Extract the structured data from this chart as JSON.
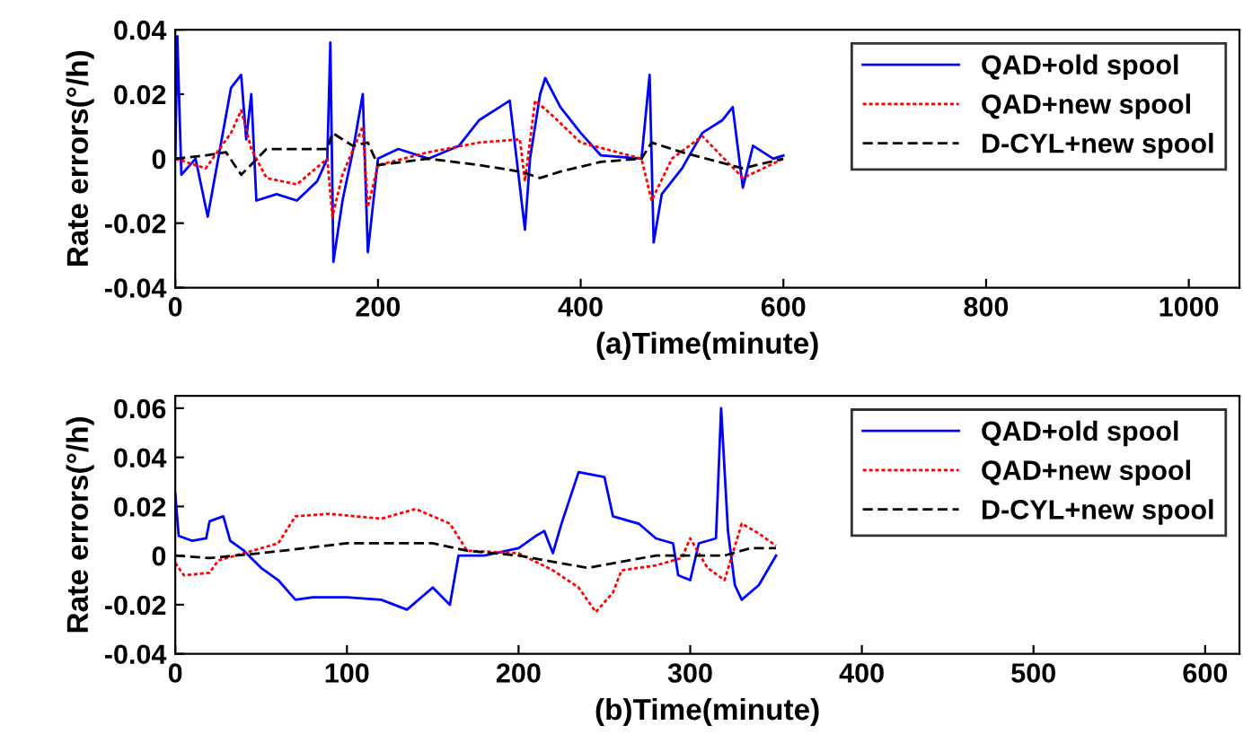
{
  "chart_data": [
    {
      "type": "line",
      "xlabel": "(a)Time(minute)",
      "ylabel": "Rate errors(°/h)",
      "xlim": [
        0,
        1050
      ],
      "xticks": [
        0,
        200,
        400,
        600,
        800,
        1000
      ],
      "ylim": [
        -0.04,
        0.04
      ],
      "yticks": [
        -0.04,
        -0.02,
        0,
        0.02,
        0.04
      ],
      "legend": "top right",
      "grid": false,
      "marker": "none",
      "series": [
        {
          "name": "QAD+old spool",
          "color": "#0000ff",
          "line_style": "solid",
          "x": [
            0,
            2,
            6,
            20,
            32,
            55,
            65,
            70,
            75,
            80,
            100,
            120,
            140,
            150,
            153,
            156,
            165,
            175,
            185,
            190,
            200,
            220,
            250,
            280,
            300,
            320,
            330,
            345,
            350,
            360,
            365,
            380,
            400,
            420,
            460,
            468,
            472,
            480,
            500,
            520,
            540,
            550,
            560,
            570,
            590,
            600
          ],
          "values": [
            0,
            0.038,
            -0.005,
            0,
            -0.018,
            0.022,
            0.026,
            0.006,
            0.02,
            -0.013,
            -0.011,
            -0.013,
            -0.007,
            0,
            0.036,
            -0.032,
            -0.013,
            0.002,
            0.02,
            -0.029,
            0,
            0.003,
            0,
            0.004,
            0.012,
            0.016,
            0.018,
            -0.022,
            0,
            0.02,
            0.025,
            0.016,
            0.008,
            0.001,
            0,
            0.026,
            -0.026,
            -0.011,
            -0.003,
            0.008,
            0.012,
            0.016,
            -0.009,
            0.004,
            0,
            0.001
          ]
        },
        {
          "name": "QAD+new spool",
          "color": "#ff0000",
          "line_style": "dotted",
          "x": [
            0,
            30,
            55,
            65,
            75,
            90,
            120,
            150,
            155,
            165,
            185,
            190,
            200,
            250,
            300,
            340,
            345,
            355,
            370,
            400,
            460,
            470,
            490,
            520,
            560,
            600
          ],
          "values": [
            0,
            -0.003,
            0.008,
            0.015,
            0.003,
            -0.006,
            -0.008,
            0,
            -0.018,
            -0.005,
            0.01,
            -0.015,
            -0.002,
            0.002,
            0.005,
            0.006,
            -0.007,
            0.018,
            0.014,
            0.005,
            0,
            -0.013,
            0,
            0.007,
            -0.006,
            0
          ]
        },
        {
          "name": "D-CYL+new spool",
          "color": "#000000",
          "line_style": "dashed",
          "x": [
            0,
            30,
            50,
            65,
            90,
            110,
            150,
            155,
            175,
            190,
            200,
            250,
            300,
            340,
            360,
            380,
            420,
            460,
            470,
            500,
            560,
            600
          ],
          "values": [
            0,
            0.001,
            0.002,
            -0.005,
            0.003,
            0.003,
            0.003,
            0.008,
            0.004,
            0.005,
            -0.002,
            0,
            -0.002,
            -0.004,
            -0.006,
            -0.004,
            -0.001,
            0,
            0.005,
            0.002,
            -0.003,
            0
          ]
        }
      ]
    },
    {
      "type": "line",
      "xlabel": "(b)Time(minute)",
      "ylabel": "Rate errors(°/h)",
      "xlim": [
        0,
        620
      ],
      "xticks": [
        0,
        100,
        200,
        300,
        400,
        500,
        600
      ],
      "ylim": [
        -0.04,
        0.065
      ],
      "yticks": [
        -0.04,
        -0.02,
        0,
        0.02,
        0.04,
        0.06
      ],
      "legend": "top right",
      "grid": false,
      "marker": "none",
      "series": [
        {
          "name": "QAD+old spool",
          "color": "#0000ff",
          "line_style": "solid",
          "x": [
            0,
            2,
            10,
            18,
            20,
            28,
            32,
            40,
            50,
            60,
            70,
            80,
            100,
            120,
            135,
            150,
            160,
            165,
            180,
            200,
            210,
            215,
            220,
            225,
            235,
            250,
            255,
            270,
            280,
            290,
            293,
            300,
            305,
            315,
            318,
            322,
            326,
            330,
            340,
            350
          ],
          "values": [
            0.025,
            0.008,
            0.006,
            0.007,
            0.014,
            0.016,
            0.006,
            0.002,
            -0.005,
            -0.01,
            -0.018,
            -0.017,
            -0.017,
            -0.018,
            -0.022,
            -0.013,
            -0.02,
            0,
            0,
            0.003,
            0.008,
            0.01,
            0.001,
            0.013,
            0.034,
            0.032,
            0.016,
            0.013,
            0.007,
            0.005,
            -0.008,
            -0.01,
            0.005,
            0.007,
            0.06,
            0.01,
            -0.012,
            -0.018,
            -0.012,
            0
          ]
        },
        {
          "name": "QAD+new spool",
          "color": "#ff0000",
          "line_style": "dotted",
          "x": [
            0,
            5,
            20,
            25,
            40,
            60,
            70,
            90,
            120,
            140,
            160,
            170,
            200,
            220,
            235,
            245,
            255,
            260,
            280,
            295,
            300,
            310,
            320,
            330,
            340,
            350
          ],
          "values": [
            -0.003,
            -0.008,
            -0.007,
            -0.002,
            0.001,
            0.005,
            0.016,
            0.017,
            0.015,
            0.019,
            0.013,
            0.002,
            0.001,
            -0.006,
            -0.013,
            -0.023,
            -0.015,
            -0.006,
            -0.004,
            -0.001,
            0.007,
            -0.005,
            -0.01,
            0.013,
            0.009,
            0.004
          ]
        },
        {
          "name": "D-CYL+new spool",
          "color": "#000000",
          "line_style": "dashed",
          "x": [
            0,
            20,
            50,
            100,
            150,
            170,
            200,
            240,
            280,
            320,
            335,
            350
          ],
          "values": [
            0,
            -0.001,
            0.001,
            0.005,
            0.005,
            0.002,
            0,
            -0.005,
            0,
            0,
            0.003,
            0.003
          ]
        }
      ]
    }
  ]
}
